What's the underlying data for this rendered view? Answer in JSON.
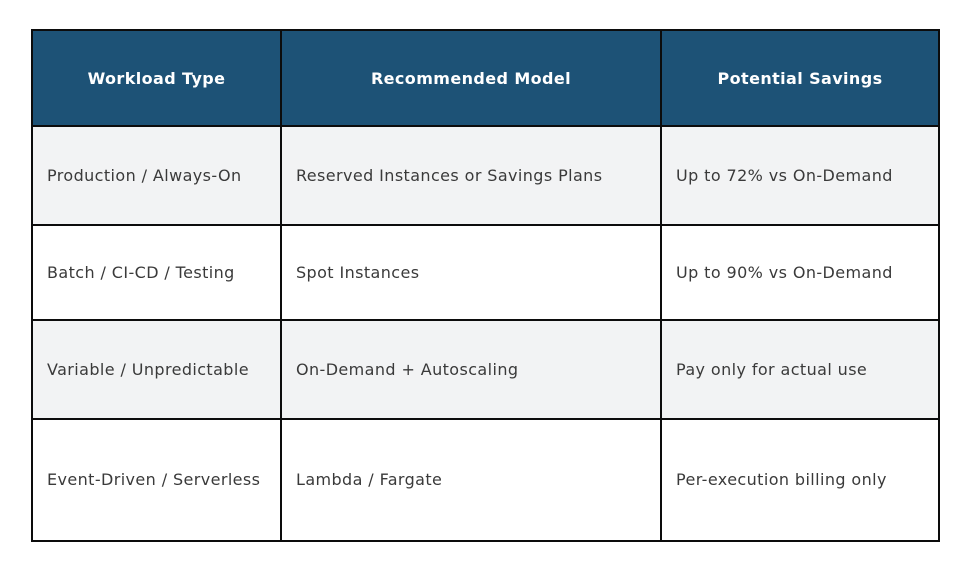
{
  "table": {
    "title": "workload-pricing-comparison",
    "colors": {
      "header_background": "#1d5276",
      "header_text": "#ffffff",
      "row_alt_background": "#f2f3f4",
      "row_background": "#ffffff",
      "border": "#0c0c0c",
      "body_text": "#3a3a3a",
      "page_background": "#ffffff"
    },
    "columns": [
      "Workload Type",
      "Recommended Model",
      "Potential Savings"
    ],
    "rows": [
      [
        "Production / Always-On",
        "Reserved Instances or Savings Plans",
        "Up to 72% vs On-Demand"
      ],
      [
        "Batch / CI-CD / Testing",
        "Spot Instances",
        "Up to 90% vs On-Demand"
      ],
      [
        "Variable / Unpredictable",
        "On-Demand + Autoscaling",
        "Pay only for actual use"
      ],
      [
        "Event-Driven / Serverless",
        "Lambda / Fargate",
        "Per-execution billing only"
      ]
    ]
  }
}
